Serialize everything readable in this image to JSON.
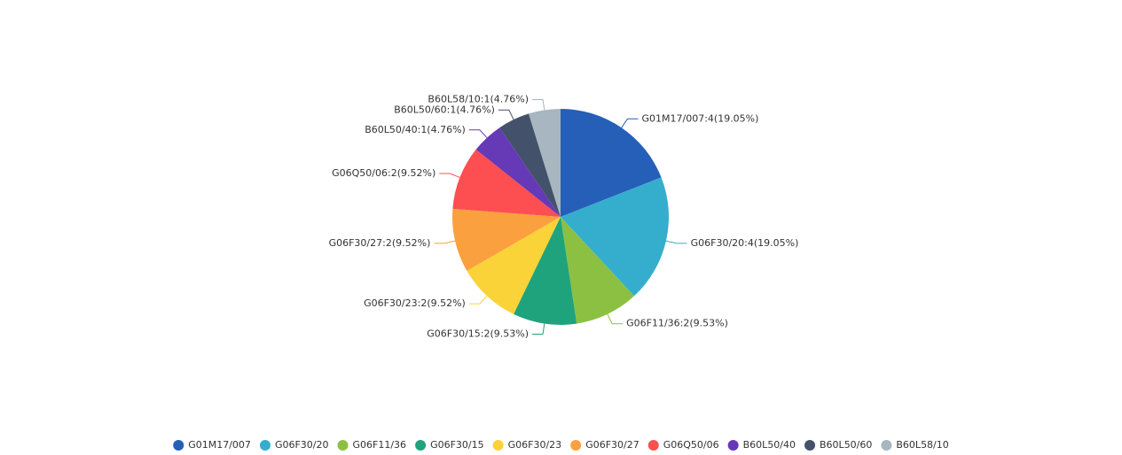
{
  "chart_data": {
    "type": "pie",
    "categories": [
      "G01M17/007",
      "G06F30/20",
      "G06F11/36",
      "G06F30/15",
      "G06F30/23",
      "G06F30/27",
      "G06Q50/06",
      "B60L50/40",
      "B60L50/60",
      "B60L58/10"
    ],
    "values": [
      4,
      4,
      2,
      2,
      2,
      2,
      2,
      1,
      1,
      1
    ],
    "value_labels": [
      "G01M17/007:4(19.05%)",
      "G06F30/20:4(19.05%)",
      "G06F11/36:2(9.53%)",
      "G06F30/15:2(9.53%)",
      "G06F30/23:2(9.52%)",
      "G06F30/27:2(9.52%)",
      "G06Q50/06:2(9.52%)",
      "B60L50/40:1(4.76%)",
      "B60L50/60:1(4.76%)",
      "B60L58/10:1(4.76%)"
    ],
    "colors": [
      "#255fb8",
      "#35aece",
      "#8bc043",
      "#1fa37c",
      "#f9d338",
      "#fba03e",
      "#fd4f52",
      "#6639b7",
      "#44516a",
      "#a7b6c0"
    ],
    "legend": "bottom"
  }
}
